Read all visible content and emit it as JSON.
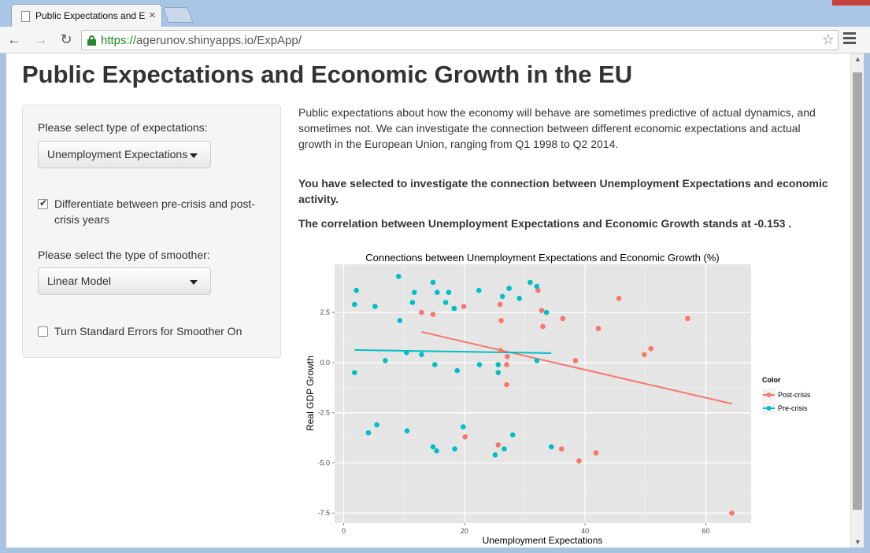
{
  "browser": {
    "tab_title": "Public Expectations and Ec",
    "url_scheme": "https://",
    "url_rest": "agerunov.shinyapps.io/ExpApp/"
  },
  "page": {
    "title": "Public Expectations and Economic Growth in the EU",
    "sidebar": {
      "expectation_label": "Please select type of expectations:",
      "expectation_value": "Unemployment Expectations",
      "differentiate_checked": true,
      "differentiate_line1": "Differentiate between pre-crisis and post-",
      "differentiate_line2": "crisis years",
      "smoother_label": "Please select the type of smoother:",
      "smoother_value": "Linear Model",
      "stderr_checked": false,
      "stderr_label": "Turn Standard Errors for Smoother On"
    },
    "intro": "Public expectations about how the economy will behave are sometimes predictive of actual dynamics, and sometimes not. We can investigate the connection between different economic expectations and actual growth in the European Union, ranging from Q1 1998 to Q2 2014.",
    "selected_text": "You have selected to investigate the connection between Unemployment Expectations and economic activity.",
    "correlation_text": "The correlation between Unemployment Expectations and Economic Growth stands at -0.153 ."
  },
  "chart_data": {
    "type": "scatter",
    "title": "Connections between Unemployment Expectations and Economic Growth (%)",
    "xlabel": "Unemployment Expectations",
    "ylabel": "Real GDP Growth",
    "xlim": [
      -1.5,
      67.5
    ],
    "ylim": [
      -8.0,
      4.9
    ],
    "x_ticks": [
      0,
      20,
      40,
      60
    ],
    "y_ticks": [
      2.5,
      0.0,
      -2.5,
      -5.0,
      -7.5
    ],
    "y_tick_labels": [
      "2.5",
      "0.0",
      "-2.5",
      "-5.0",
      "-7.5"
    ],
    "grid": true,
    "legend_title": "Color",
    "legend_position": "right",
    "series": [
      {
        "name": "Post-crisis",
        "color": "#F8766D",
        "points": [
          [
            12.9,
            2.5
          ],
          [
            14.8,
            2.4
          ],
          [
            19.9,
            2.8
          ],
          [
            25.9,
            2.9
          ],
          [
            26.1,
            2.1
          ],
          [
            26.0,
            0.6
          ],
          [
            27.1,
            0.3
          ],
          [
            27.0,
            -0.1
          ],
          [
            27.0,
            -1.1
          ],
          [
            32.2,
            3.6
          ],
          [
            32.8,
            2.6
          ],
          [
            33.0,
            1.8
          ],
          [
            36.3,
            2.2
          ],
          [
            38.4,
            0.1
          ],
          [
            42.2,
            1.7
          ],
          [
            45.6,
            3.2
          ],
          [
            49.8,
            0.4
          ],
          [
            50.9,
            0.7
          ],
          [
            57.0,
            2.2
          ],
          [
            20.1,
            -3.7
          ],
          [
            25.6,
            -4.1
          ],
          [
            36.1,
            -4.3
          ],
          [
            39.0,
            -4.9
          ],
          [
            41.8,
            -4.5
          ],
          [
            64.3,
            -7.5
          ]
        ],
        "fit": [
          [
            12.9,
            1.53
          ],
          [
            64.3,
            -2.05
          ]
        ]
      },
      {
        "name": "Pre-crisis",
        "color": "#00BFC4",
        "points": [
          [
            1.8,
            2.9
          ],
          [
            2.1,
            3.6
          ],
          [
            5.2,
            2.8
          ],
          [
            9.1,
            4.3
          ],
          [
            9.3,
            2.1
          ],
          [
            11.4,
            3.0
          ],
          [
            11.7,
            3.5
          ],
          [
            14.8,
            4.0
          ],
          [
            15.5,
            3.5
          ],
          [
            16.9,
            3.0
          ],
          [
            17.4,
            3.5
          ],
          [
            18.3,
            2.7
          ],
          [
            22.4,
            3.6
          ],
          [
            26.3,
            3.3
          ],
          [
            27.4,
            3.7
          ],
          [
            29.1,
            3.2
          ],
          [
            30.9,
            4.0
          ],
          [
            32.0,
            3.8
          ],
          [
            33.6,
            2.5
          ],
          [
            1.8,
            -0.5
          ],
          [
            6.9,
            0.1
          ],
          [
            10.4,
            0.5
          ],
          [
            12.9,
            0.4
          ],
          [
            15.1,
            -0.1
          ],
          [
            18.8,
            -0.4
          ],
          [
            22.5,
            -0.1
          ],
          [
            25.6,
            -0.1
          ],
          [
            25.6,
            -0.5
          ],
          [
            32.0,
            0.1
          ],
          [
            4.1,
            -3.5
          ],
          [
            5.5,
            -3.1
          ],
          [
            10.5,
            -3.4
          ],
          [
            14.8,
            -4.2
          ],
          [
            15.4,
            -4.4
          ],
          [
            18.4,
            -4.3
          ],
          [
            19.8,
            -3.2
          ],
          [
            25.1,
            -4.6
          ],
          [
            26.6,
            -4.3
          ],
          [
            28.0,
            -3.6
          ],
          [
            34.4,
            -4.2
          ]
        ],
        "fit": [
          [
            1.8,
            0.63
          ],
          [
            34.4,
            0.47
          ]
        ]
      }
    ]
  }
}
